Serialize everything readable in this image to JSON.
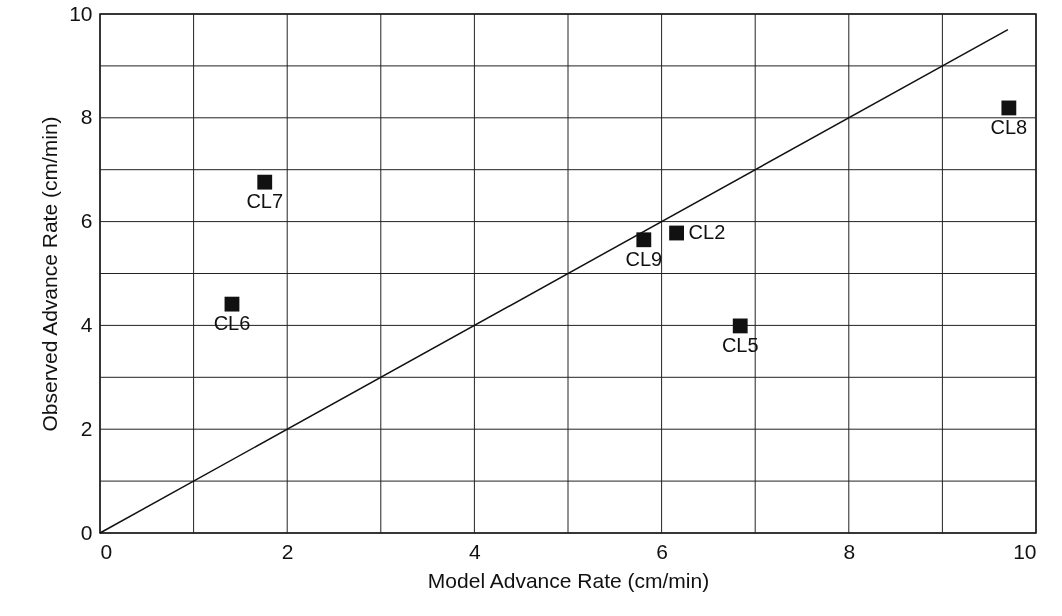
{
  "chart_data": {
    "type": "scatter",
    "xlabel": "Model Advance Rate (cm/min)",
    "ylabel": "Observed Advance Rate (cm/min)",
    "xlim": [
      0,
      10
    ],
    "ylim": [
      0,
      10
    ],
    "xticks": [
      0,
      2,
      4,
      6,
      8,
      10
    ],
    "yticks": [
      0,
      2,
      4,
      6,
      8,
      10
    ],
    "grid": true,
    "series": [
      {
        "color": "#111111",
        "marker": "square",
        "x": [
          1.76,
          1.41,
          5.81,
          6.16,
          6.84,
          9.71
        ],
        "values": [
          6.76,
          4.41,
          5.65,
          5.78,
          3.99,
          8.19
        ]
      },
      {
        "type": "line",
        "color": "#111111",
        "x": [
          0,
          9.7
        ],
        "values": [
          0,
          9.7
        ]
      }
    ],
    "annotations": [
      {
        "text": "CL7",
        "x": 1.76,
        "y": 6.76
      },
      {
        "text": "CL6",
        "x": 1.41,
        "y": 4.41
      },
      {
        "text": "CL9",
        "x": 5.81,
        "y": 5.65
      },
      {
        "text": "CL2",
        "x": 6.16,
        "y": 5.78
      },
      {
        "text": "CL5",
        "x": 6.84,
        "y": 3.99
      },
      {
        "text": "CL8",
        "x": 9.71,
        "y": 8.19
      }
    ]
  }
}
